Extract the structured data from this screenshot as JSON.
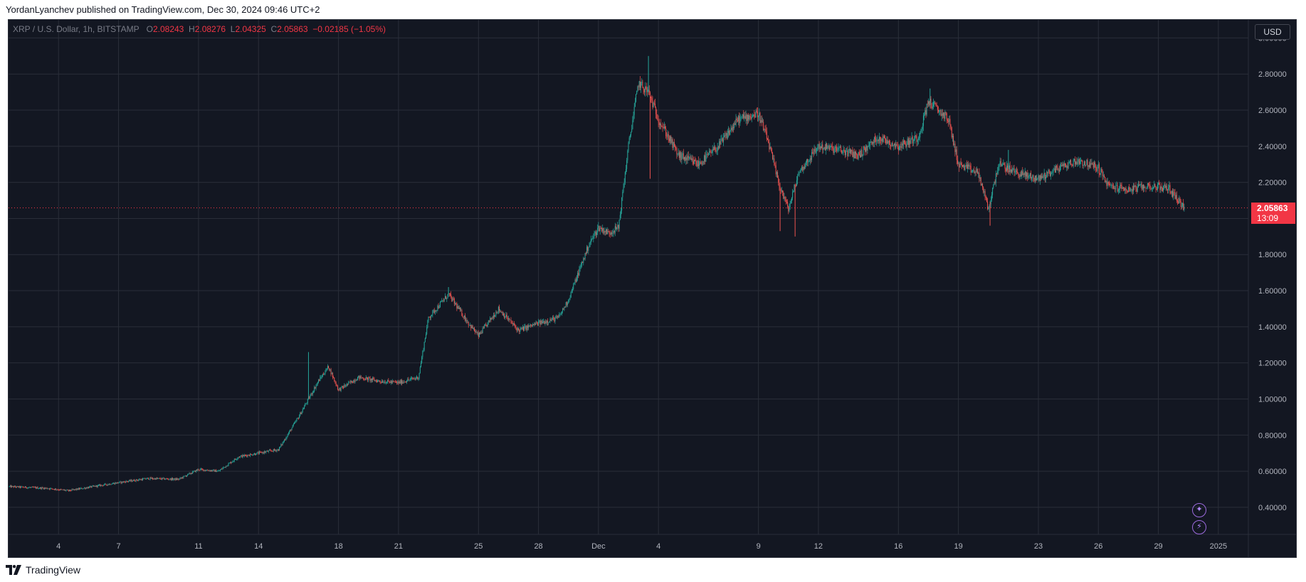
{
  "header": {
    "text": "YordanLyanchev published on TradingView.com, Dec 30, 2024 09:46 UTC+2"
  },
  "legend": {
    "symbol": "XRP / U.S. Dollar, 1h, BITSTAMP",
    "o_label": "O",
    "o_value": "2.08243",
    "h_label": "H",
    "h_value": "2.08276",
    "l_label": "L",
    "l_value": "2.04325",
    "c_label": "C",
    "c_value": "2.05863",
    "change": "−0.02185 (−1.05%)"
  },
  "currency_button": "USD",
  "last_price": {
    "price": "2.05863",
    "countdown": "13:09"
  },
  "footer": {
    "brand": "TradingView"
  },
  "icons": {
    "ideas": "sparkle-icon",
    "alerts": "lightning-icon"
  },
  "colors": {
    "up": "#26a69a",
    "down": "#ef5350",
    "background": "#131722",
    "last_price": "#f23645",
    "buttons": "#9c6ade"
  },
  "chart_data": {
    "type": "candlestick",
    "interval": "1h",
    "ylim": [
      0.25,
      3.1
    ],
    "grid": true,
    "y_ticks": [
      "3.00000",
      "2.80000",
      "2.60000",
      "2.40000",
      "2.20000",
      "2.00000",
      "1.80000",
      "1.60000",
      "1.40000",
      "1.20000",
      "1.00000",
      "0.80000",
      "0.60000",
      "0.40000"
    ],
    "y_tick_values": [
      3.0,
      2.8,
      2.6,
      2.4,
      2.2,
      2.0,
      1.8,
      1.6,
      1.4,
      1.2,
      1.0,
      0.8,
      0.6,
      0.4
    ],
    "x_ticks": [
      {
        "label": "4",
        "date": "2024-11-04"
      },
      {
        "label": "7",
        "date": "2024-11-07"
      },
      {
        "label": "11",
        "date": "2024-11-11"
      },
      {
        "label": "14",
        "date": "2024-11-14"
      },
      {
        "label": "18",
        "date": "2024-11-18"
      },
      {
        "label": "21",
        "date": "2024-11-21"
      },
      {
        "label": "25",
        "date": "2024-11-25"
      },
      {
        "label": "28",
        "date": "2024-11-28"
      },
      {
        "label": "Dec",
        "date": "2024-12-01"
      },
      {
        "label": "4",
        "date": "2024-12-04"
      },
      {
        "label": "9",
        "date": "2024-12-09"
      },
      {
        "label": "12",
        "date": "2024-12-12"
      },
      {
        "label": "16",
        "date": "2024-12-16"
      },
      {
        "label": "19",
        "date": "2024-12-19"
      },
      {
        "label": "23",
        "date": "2024-12-23"
      },
      {
        "label": "26",
        "date": "2024-12-26"
      },
      {
        "label": "29",
        "date": "2024-12-29"
      },
      {
        "label": "2025",
        "date": "2025-01-01"
      }
    ],
    "x_range": [
      "2024-11-01T12:00",
      "2025-01-02T12:00"
    ],
    "close_path": [
      {
        "t": "2024-11-01T12:00",
        "p": 0.515
      },
      {
        "t": "2024-11-03T12:00",
        "p": 0.505
      },
      {
        "t": "2024-11-04T12:00",
        "p": 0.492
      },
      {
        "t": "2024-11-06T00:00",
        "p": 0.52
      },
      {
        "t": "2024-11-07T12:00",
        "p": 0.545
      },
      {
        "t": "2024-11-08T12:00",
        "p": 0.56
      },
      {
        "t": "2024-11-10T00:00",
        "p": 0.555
      },
      {
        "t": "2024-11-11T00:00",
        "p": 0.61
      },
      {
        "t": "2024-11-12T00:00",
        "p": 0.6
      },
      {
        "t": "2024-11-13T00:00",
        "p": 0.68
      },
      {
        "t": "2024-11-14T00:00",
        "p": 0.7
      },
      {
        "t": "2024-11-15T00:00",
        "p": 0.72
      },
      {
        "t": "2024-11-16T00:00",
        "p": 0.9
      },
      {
        "t": "2024-11-17T00:00",
        "p": 1.1
      },
      {
        "t": "2024-11-17T12:00",
        "p": 1.18
      },
      {
        "t": "2024-11-18T00:00",
        "p": 1.05
      },
      {
        "t": "2024-11-19T00:00",
        "p": 1.12
      },
      {
        "t": "2024-11-20T00:00",
        "p": 1.1
      },
      {
        "t": "2024-11-21T00:00",
        "p": 1.09
      },
      {
        "t": "2024-11-22T00:00",
        "p": 1.12
      },
      {
        "t": "2024-11-22T12:00",
        "p": 1.45
      },
      {
        "t": "2024-11-23T12:00",
        "p": 1.58
      },
      {
        "t": "2024-11-24T12:00",
        "p": 1.42
      },
      {
        "t": "2024-11-25T00:00",
        "p": 1.35
      },
      {
        "t": "2024-11-26T00:00",
        "p": 1.5
      },
      {
        "t": "2024-11-27T00:00",
        "p": 1.38
      },
      {
        "t": "2024-11-28T00:00",
        "p": 1.42
      },
      {
        "t": "2024-11-29T00:00",
        "p": 1.45
      },
      {
        "t": "2024-11-29T12:00",
        "p": 1.55
      },
      {
        "t": "2024-11-30T12:00",
        "p": 1.85
      },
      {
        "t": "2024-12-01T00:00",
        "p": 1.95
      },
      {
        "t": "2024-12-01T12:00",
        "p": 1.92
      },
      {
        "t": "2024-12-02T00:00",
        "p": 1.95
      },
      {
        "t": "2024-12-02T12:00",
        "p": 2.4
      },
      {
        "t": "2024-12-03T00:00",
        "p": 2.75
      },
      {
        "t": "2024-12-03T12:00",
        "p": 2.7
      },
      {
        "t": "2024-12-04T00:00",
        "p": 2.55
      },
      {
        "t": "2024-12-05T00:00",
        "p": 2.35
      },
      {
        "t": "2024-12-06T00:00",
        "p": 2.3
      },
      {
        "t": "2024-12-07T00:00",
        "p": 2.4
      },
      {
        "t": "2024-12-08T00:00",
        "p": 2.55
      },
      {
        "t": "2024-12-09T00:00",
        "p": 2.58
      },
      {
        "t": "2024-12-09T12:00",
        "p": 2.42
      },
      {
        "t": "2024-12-10T00:00",
        "p": 2.2
      },
      {
        "t": "2024-12-10T12:00",
        "p": 2.05
      },
      {
        "t": "2024-12-11T00:00",
        "p": 2.25
      },
      {
        "t": "2024-12-12T00:00",
        "p": 2.4
      },
      {
        "t": "2024-12-13T00:00",
        "p": 2.38
      },
      {
        "t": "2024-12-14T00:00",
        "p": 2.35
      },
      {
        "t": "2024-12-15T00:00",
        "p": 2.45
      },
      {
        "t": "2024-12-16T00:00",
        "p": 2.4
      },
      {
        "t": "2024-12-17T00:00",
        "p": 2.45
      },
      {
        "t": "2024-12-17T12:00",
        "p": 2.65
      },
      {
        "t": "2024-12-18T12:00",
        "p": 2.55
      },
      {
        "t": "2024-12-19T00:00",
        "p": 2.3
      },
      {
        "t": "2024-12-20T00:00",
        "p": 2.25
      },
      {
        "t": "2024-12-20T12:00",
        "p": 2.05
      },
      {
        "t": "2024-12-21T00:00",
        "p": 2.3
      },
      {
        "t": "2024-12-22T00:00",
        "p": 2.25
      },
      {
        "t": "2024-12-23T00:00",
        "p": 2.22
      },
      {
        "t": "2024-12-24T00:00",
        "p": 2.28
      },
      {
        "t": "2024-12-25T00:00",
        "p": 2.32
      },
      {
        "t": "2024-12-26T00:00",
        "p": 2.28
      },
      {
        "t": "2024-12-26T12:00",
        "p": 2.18
      },
      {
        "t": "2024-12-27T12:00",
        "p": 2.16
      },
      {
        "t": "2024-12-28T12:00",
        "p": 2.18
      },
      {
        "t": "2024-12-29T12:00",
        "p": 2.17
      },
      {
        "t": "2024-12-30T07:00",
        "p": 2.06
      }
    ],
    "spikes": [
      {
        "t": "2024-11-16T12:00",
        "high": 1.26
      },
      {
        "t": "2024-11-23T12:00",
        "high": 1.62
      },
      {
        "t": "2024-12-03T12:00",
        "high": 2.9
      },
      {
        "t": "2024-12-03T14:00",
        "low": 2.22
      },
      {
        "t": "2024-12-10T02:00",
        "low": 1.93
      },
      {
        "t": "2024-12-10T20:00",
        "low": 1.9
      },
      {
        "t": "2024-12-17T14:00",
        "high": 2.72
      },
      {
        "t": "2024-12-20T14:00",
        "low": 1.96
      },
      {
        "t": "2024-12-21T12:00",
        "high": 2.38
      }
    ],
    "last_close": 2.05863
  }
}
